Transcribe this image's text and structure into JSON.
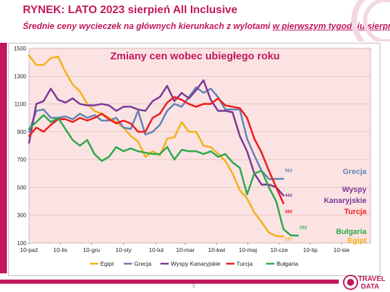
{
  "header": {
    "title": "RYNEK: LATO 2023 sierpień All Inclusive",
    "subtitle_a": "Średnie ceny wycieczek na głównych kierunkach z wylotami ",
    "subtitle_b": "w pierwszym tygodniu sierpnia"
  },
  "footer": {
    "page_number": "9",
    "logo_text_1": "TRAVEL",
    "logo_text_2": "DATA"
  },
  "colors": {
    "brand": "#c2185b",
    "plot_bg": "#fbe3e3"
  },
  "chart_data": {
    "type": "line",
    "title": "Zmiany cen wobec ubiegłego roku",
    "xlabel": "",
    "ylabel": "",
    "ylim": [
      100,
      1500
    ],
    "yticks": [
      100,
      300,
      500,
      700,
      900,
      1100,
      1300,
      1500
    ],
    "xlim": [
      0,
      47
    ],
    "xticks": [
      {
        "x": 0,
        "label": "10-paź"
      },
      {
        "x": 4.3,
        "label": "10-lis"
      },
      {
        "x": 8.6,
        "label": "10-gru"
      },
      {
        "x": 13.0,
        "label": "10-sty"
      },
      {
        "x": 17.5,
        "label": "10-lut"
      },
      {
        "x": 21.5,
        "label": "10-mar"
      },
      {
        "x": 25.8,
        "label": "10-kwi"
      },
      {
        "x": 30.1,
        "label": "10-maj"
      },
      {
        "x": 34.4,
        "label": "10-cze"
      },
      {
        "x": 38.7,
        "label": "10-lip"
      },
      {
        "x": 43.0,
        "label": "10-sie"
      }
    ],
    "grid": "horizontal",
    "legend": "bottom",
    "series": [
      {
        "name": "Egipt",
        "color": "#f5b016",
        "values": [
          1450,
          1380,
          1380,
          1430,
          1440,
          1330,
          1240,
          1190,
          1100,
          1050,
          1030,
          1000,
          970,
          930,
          870,
          830,
          720,
          760,
          730,
          850,
          860,
          970,
          900,
          900,
          800,
          790,
          740,
          690,
          600,
          480,
          420,
          320,
          250,
          175,
          150,
          147
        ]
      },
      {
        "name": "Grecja",
        "color": "#6483b4",
        "values": [
          900,
          1050,
          1060,
          1000,
          1000,
          1010,
          990,
          1030,
          1000,
          1020,
          980,
          980,
          1000,
          930,
          920,
          1050,
          880,
          900,
          950,
          1050,
          1100,
          1080,
          1150,
          1220,
          1180,
          1210,
          1150,
          1060,
          1060,
          1060,
          850,
          730,
          620,
          560,
          560,
          562
        ]
      },
      {
        "name": "Wyspy Kanaryjskie",
        "color": "#7b3a96",
        "values": [
          820,
          1100,
          1120,
          1210,
          1130,
          1110,
          1140,
          1100,
          1090,
          1090,
          1100,
          1090,
          1050,
          1080,
          1080,
          1060,
          1050,
          1120,
          1150,
          1230,
          1120,
          1180,
          1140,
          1200,
          1270,
          1130,
          1050,
          1050,
          1040,
          870,
          760,
          600,
          520,
          520,
          500,
          442
        ]
      },
      {
        "name": "Turcja",
        "color": "#ee1c1c",
        "values": [
          870,
          930,
          900,
          950,
          990,
          990,
          970,
          1000,
          980,
          1000,
          1030,
          990,
          960,
          980,
          960,
          900,
          900,
          1000,
          1030,
          1110,
          1150,
          1130,
          1100,
          1080,
          1100,
          1100,
          1140,
          1090,
          1080,
          1070,
          1000,
          850,
          750,
          620,
          500,
          386
        ]
      },
      {
        "name": "Bułgaria",
        "color": "#2ea84a",
        "values": [
          920,
          970,
          1020,
          970,
          1000,
          920,
          840,
          800,
          840,
          740,
          690,
          720,
          790,
          760,
          780,
          760,
          750,
          740,
          740,
          790,
          700,
          770,
          760,
          760,
          740,
          760,
          720,
          740,
          680,
          640,
          450,
          600,
          620,
          500,
          400,
          200,
          155,
          153
        ]
      }
    ],
    "end_labels": [
      {
        "series": "Grecja",
        "text": "562"
      },
      {
        "series": "Wyspy Kanaryjskie",
        "text": "442"
      },
      {
        "series": "Turcja",
        "text": "386"
      },
      {
        "series": "Bułgaria",
        "text": "153"
      },
      {
        "series": "Egipt",
        "text": "147"
      }
    ],
    "right_labels": [
      {
        "text": "Grecja",
        "color": "#6483b4"
      },
      {
        "text": "Wyspy",
        "color": "#7b3a96"
      },
      {
        "text": "Kanaryjskie",
        "color": "#7b3a96"
      },
      {
        "text": "Turcja",
        "color": "#ee1c1c"
      },
      {
        "text": "Bułgaria",
        "color": "#2ea84a"
      },
      {
        "text": "Egipt",
        "color": "#f5b016"
      }
    ]
  }
}
